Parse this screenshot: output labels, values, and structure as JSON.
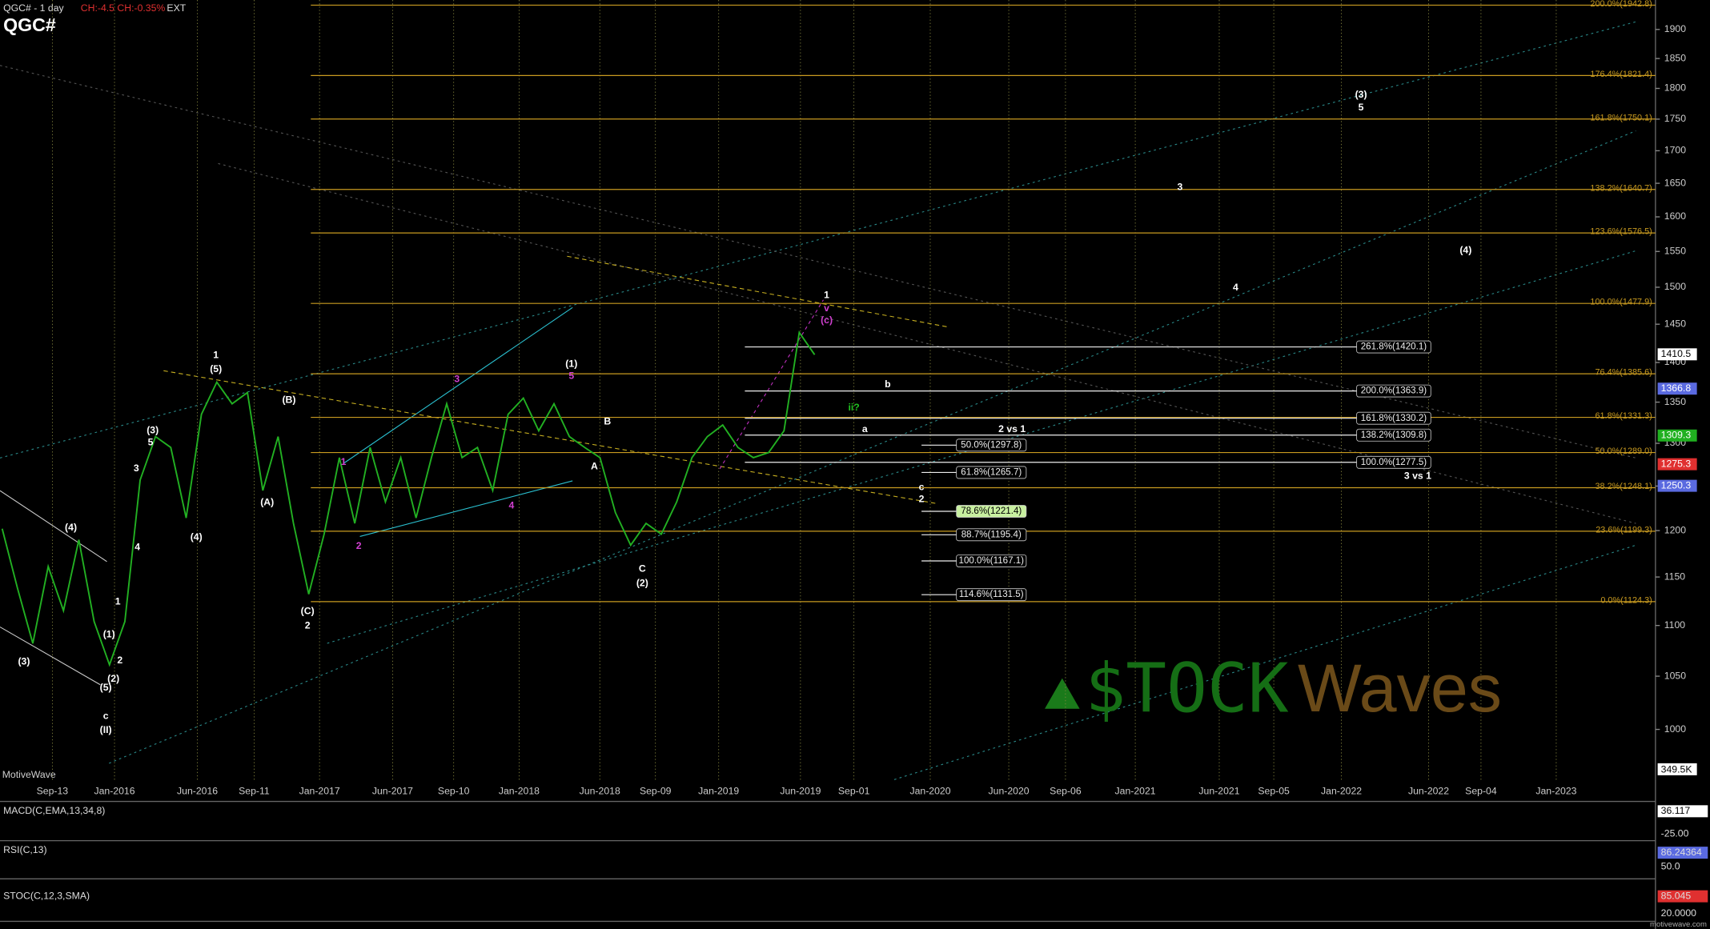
{
  "header": {
    "symbol_interval": "QGC# - 1 day",
    "change": "CH:-4.5 CH:-0.35%",
    "session": "EXT",
    "symbol": "QGC#"
  },
  "chart_data": {
    "type": "line",
    "log_scale": true,
    "grid": true,
    "color": "#22b022",
    "values": [
      1202,
      1138,
      1082,
      1161,
      1115,
      1190,
      1104,
      1061,
      1104,
      1257,
      1308,
      1295,
      1214,
      1335,
      1375,
      1348,
      1362,
      1245,
      1308,
      1208,
      1132,
      1196,
      1283,
      1208,
      1295,
      1232,
      1283,
      1214,
      1283,
      1348,
      1283,
      1295,
      1245,
      1335,
      1355,
      1315,
      1348,
      1308,
      1295,
      1283,
      1220,
      1184,
      1208,
      1196,
      1232,
      1283,
      1308,
      1322,
      1295,
      1283,
      1289,
      1315,
      1439,
      1410
    ],
    "ylim": [
      955,
      1952
    ],
    "yticks": [
      1000,
      1050,
      1100,
      1150,
      1200,
      1250,
      1300,
      1350,
      1400,
      1450,
      1500,
      1550,
      1600,
      1650,
      1700,
      1750,
      1800,
      1850,
      1900
    ],
    "x_tick_labels": [
      "Sep-13",
      "Jan-2016",
      "Jun-2016",
      "Sep-11",
      "Jan-2017",
      "Jun-2017",
      "Sep-10",
      "Jan-2018",
      "Jun-2018",
      "Sep-09",
      "Jan-2019",
      "Jun-2019",
      "Sep-01",
      "Jan-2020",
      "Jun-2020",
      "Sep-06",
      "Jan-2021",
      "Jun-2021",
      "Sep-05",
      "Jan-2022",
      "Jun-2022",
      "Sep-04",
      "Jan-2023"
    ],
    "fib_levels_a": [
      {
        "value": 1942.8,
        "label": "200.0%(1942.8)"
      },
      {
        "value": 1821.4,
        "label": "176.4%(1821.4)"
      },
      {
        "value": 1750.1,
        "label": "161.8%(1750.1)"
      },
      {
        "value": 1640.7,
        "label": "138.2%(1640.7)"
      },
      {
        "value": 1576.5,
        "label": "123.6%(1576.5)"
      },
      {
        "value": 1477.9,
        "label": "100.0%(1477.9)"
      },
      {
        "value": 1385.6,
        "label": "76.4%(1385.6)"
      },
      {
        "value": 1331.3,
        "label": "61.8%(1331.3)"
      },
      {
        "value": 1289.0,
        "label": "50.0%(1289.0)"
      },
      {
        "value": 1248.1,
        "label": "38.2%(1248.1)"
      },
      {
        "value": 1199.3,
        "label": "23.6%(1199.3)"
      },
      {
        "value": 1124.3,
        "label": "0.0%(1124.3)"
      }
    ],
    "fib_levels_b": [
      {
        "value": 1420.1,
        "label": "261.8%(1420.1)"
      },
      {
        "value": 1363.9,
        "label": "200.0%(1363.9)"
      },
      {
        "value": 1330.2,
        "label": "161.8%(1330.2)"
      },
      {
        "value": 1309.8,
        "label": "138.2%(1309.8)"
      },
      {
        "value": 1277.5,
        "label": "100.0%(1277.5)"
      }
    ],
    "fib_levels_c": [
      {
        "value": 1297.8,
        "label": "50.0%(1297.8)"
      },
      {
        "value": 1265.7,
        "label": "61.8%(1265.7)"
      },
      {
        "value": 1221.4,
        "label": "78.6%(1221.4)"
      },
      {
        "value": 1195.4,
        "label": "88.7%(1195.4)"
      },
      {
        "value": 1167.1,
        "label": "100.0%(1167.1)"
      },
      {
        "value": 1131.5,
        "label": "114.6%(1131.5)"
      }
    ],
    "price_tags": [
      {
        "value": 1410.5,
        "label": "1410.5"
      },
      {
        "value": 1366.8,
        "label": "1366.8"
      },
      {
        "value": 1309.3,
        "label": "1309.3"
      },
      {
        "value": 1275.3,
        "label": "1275.3"
      },
      {
        "value": 1250.3,
        "label": "1250.3"
      }
    ],
    "volume_tag": "349.5K",
    "wave_labels": [
      "1",
      "(5)",
      "(3)",
      "5",
      "3",
      "4",
      "(4)",
      "(3)",
      "(1)",
      "1",
      "2",
      "(2)",
      "(5)",
      "c",
      "(II)",
      "(B)",
      "(A)",
      "(4)",
      "(C)",
      "2",
      "(1)",
      "5",
      "3",
      "1",
      "2",
      "4",
      "B",
      "A",
      "C",
      "(2)",
      "1",
      "v",
      "(c)",
      "2 vs 1",
      "3 vs 1",
      "ii?",
      "a",
      "b",
      "c",
      "2",
      "(3)",
      "5",
      "3",
      "4",
      "(4)"
    ],
    "volume_label": "MotiveWave",
    "indicators": [
      {
        "name": "MACD(C,EMA,13,34,8)",
        "labels": [
          "36.117",
          "-25.00"
        ]
      },
      {
        "name": "RSI(C,13)",
        "labels": [
          "86.24364",
          "50.0"
        ]
      },
      {
        "name": "STOC(C,12,3,SMA)",
        "labels": [
          "85.045",
          "20.0000"
        ]
      }
    ],
    "watermark": [
      "$TOCK",
      "Waves"
    ],
    "footer": "motivewave.com"
  }
}
